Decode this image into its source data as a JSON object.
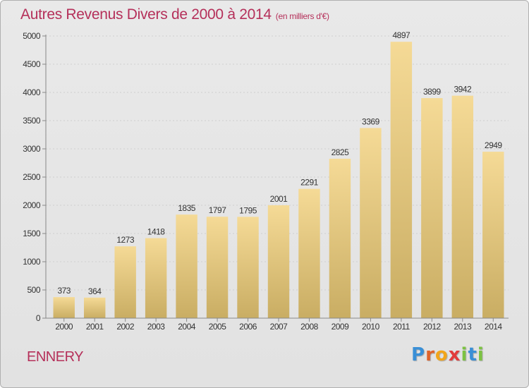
{
  "header": {
    "title": "Autres Revenus Divers de 2000 à 2014",
    "unit": "(en milliers d'€)"
  },
  "footer": {
    "commune": "ENNERY",
    "logo_letters": [
      "P",
      "r",
      "o",
      "x",
      "i",
      "t",
      "i"
    ]
  },
  "colors": {
    "title": "#b5305a",
    "bar_top": "#f5da96",
    "bar_bottom": "#c9ad63",
    "grid": "#cfcfcf"
  },
  "chart_data": {
    "type": "bar",
    "title": "Autres Revenus Divers de 2000 à 2014",
    "categories": [
      "2000",
      "2001",
      "2002",
      "2003",
      "2004",
      "2005",
      "2006",
      "2007",
      "2008",
      "2009",
      "2010",
      "2011",
      "2012",
      "2013",
      "2014"
    ],
    "values": [
      373,
      364,
      1273,
      1418,
      1835,
      1797,
      1795,
      2001,
      2291,
      2825,
      3369,
      4897,
      3899,
      3942,
      2949
    ],
    "ylim": [
      0,
      5000
    ],
    "yticks": [
      0,
      500,
      1000,
      1500,
      2000,
      2500,
      3000,
      3500,
      4000,
      4500,
      5000
    ],
    "grid": true,
    "xlabel": "",
    "ylabel": ""
  }
}
